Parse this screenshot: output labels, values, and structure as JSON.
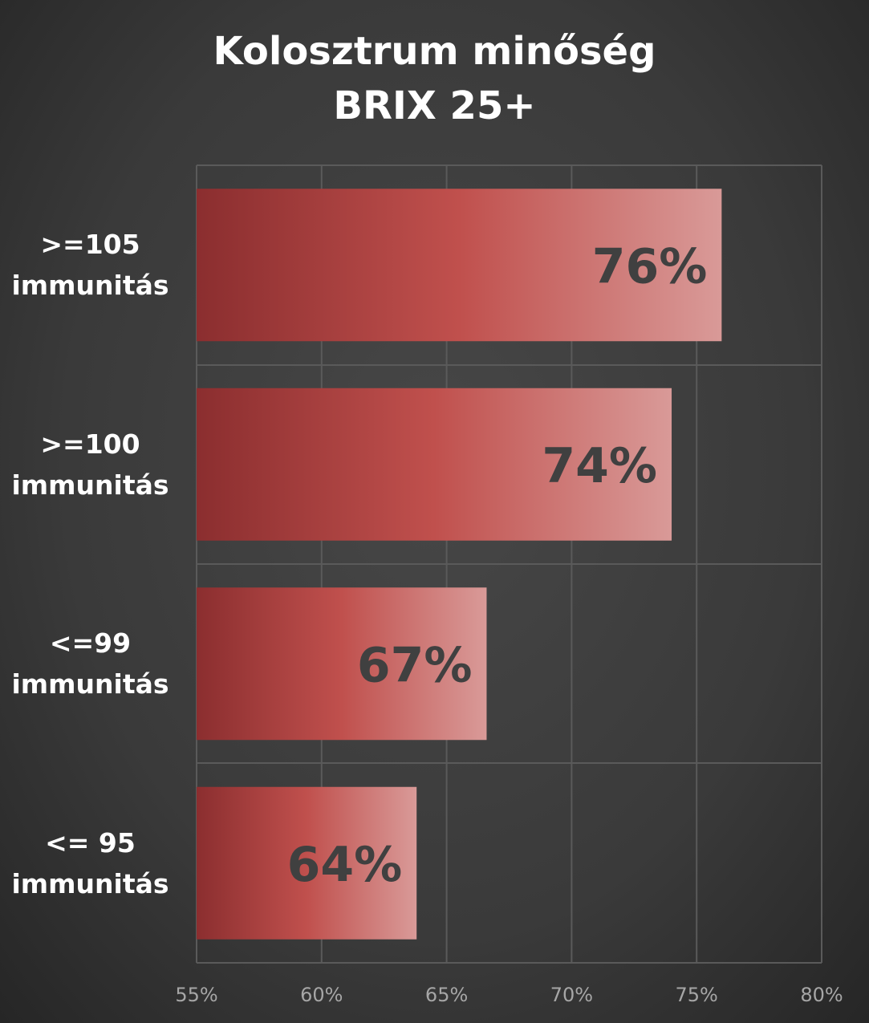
{
  "chart_data": {
    "type": "barh",
    "title": "Kolosztrum minőség\nBRIX 25+",
    "categories": [
      ">=105\nimmunitás",
      ">=100\nimmunitás",
      "<=99\nimmunitás",
      "<= 95\nimmunitás"
    ],
    "values": [
      76,
      74,
      66.6,
      63.8
    ],
    "value_labels": [
      "76%",
      "74%",
      "67%",
      "64%"
    ],
    "colors": [
      "#8b2e2f",
      "#c0504d",
      "#d99a98"
    ],
    "xlim": [
      55,
      80
    ],
    "xticks": [
      {
        "value": 55,
        "label": "55%"
      },
      {
        "value": 60,
        "label": "60%"
      },
      {
        "value": 65,
        "label": "65%"
      },
      {
        "value": 70,
        "label": "70%"
      },
      {
        "value": 75,
        "label": "75%"
      },
      {
        "value": 80,
        "label": "80%"
      }
    ],
    "grid": true
  }
}
